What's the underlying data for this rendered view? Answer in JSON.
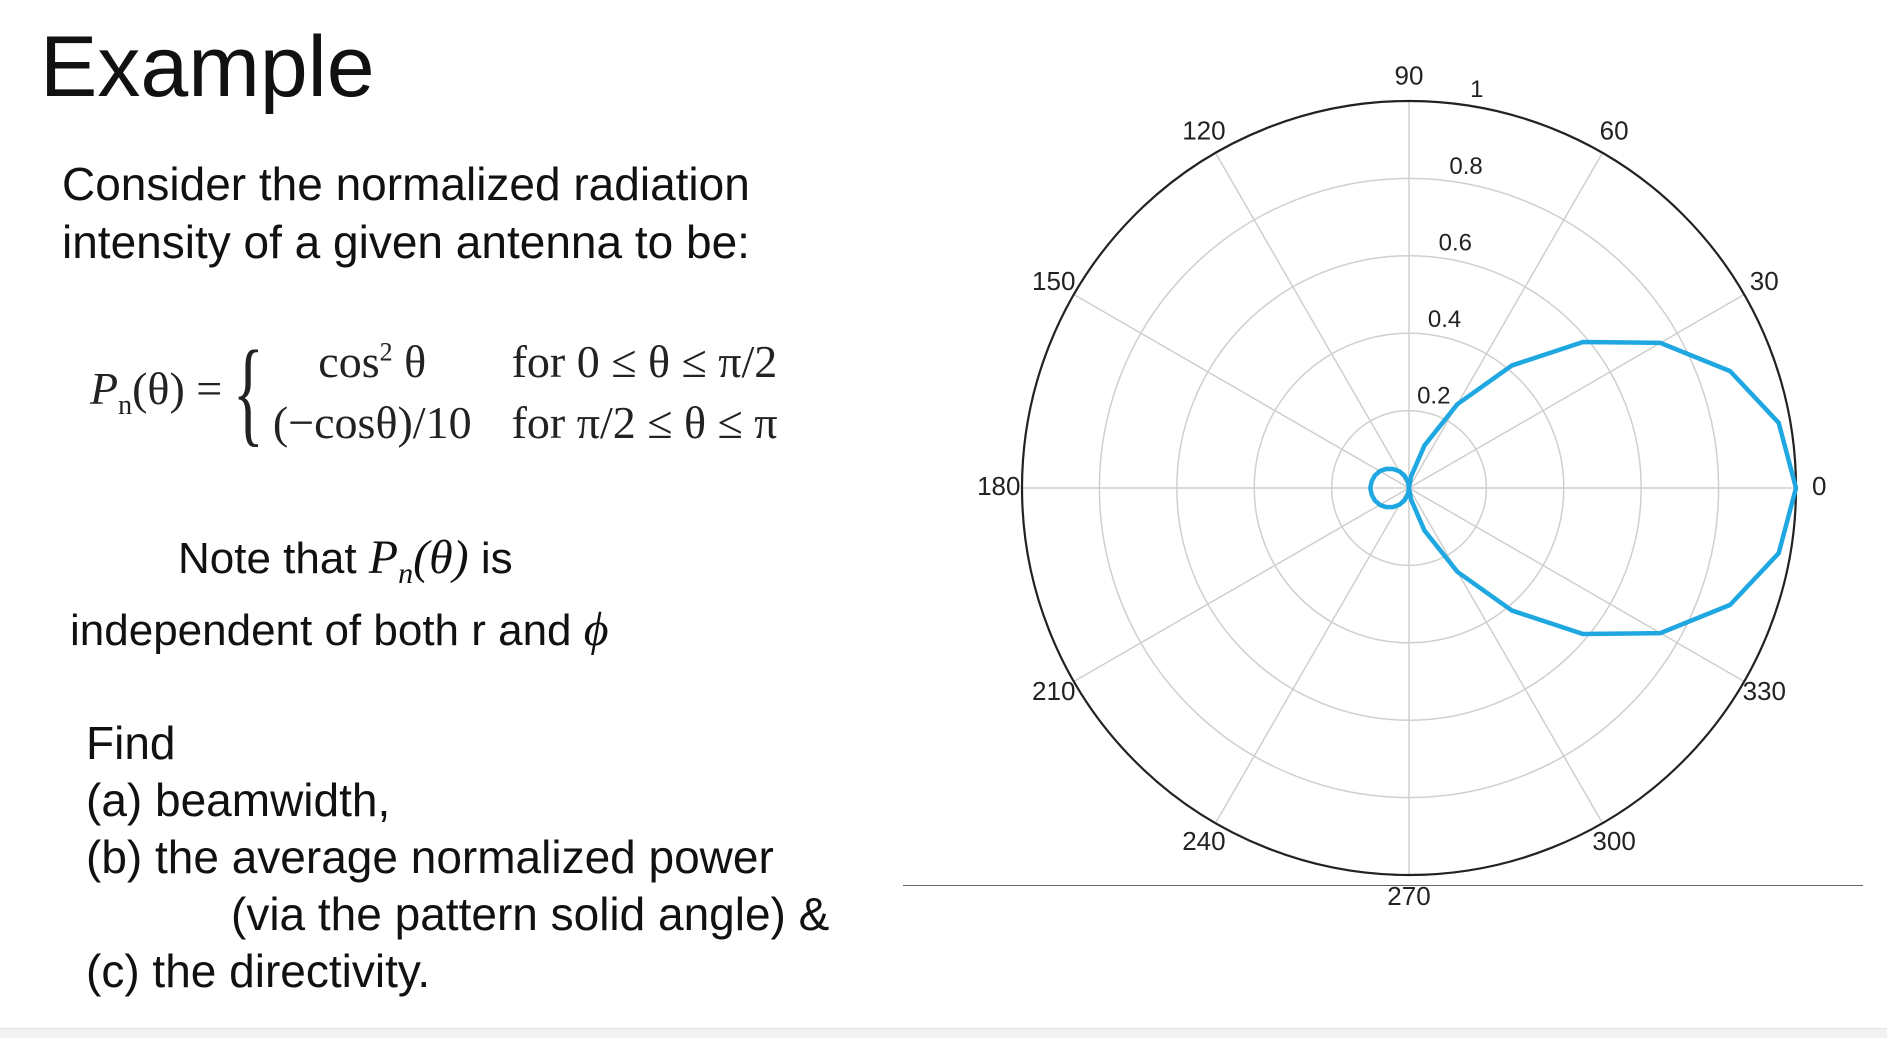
{
  "slide": {
    "title": "Example",
    "intro_line1": "Consider the normalized radiation",
    "intro_line2": "intensity of a given antenna to be:",
    "equation": {
      "lhs_P": "P",
      "lhs_sub": "n",
      "lhs_rest": "(θ) =",
      "case1_expr_base": "cos",
      "case1_expr_sup": "2",
      "case1_expr_var": " θ",
      "case1_cond": "for  0 ≤ θ ≤ π/2",
      "case2_expr": "(−cosθ)/10",
      "case2_cond": "for  π/2 ≤ θ ≤ π"
    },
    "note_line1_pre": "Note that ",
    "note_line1_math": "P",
    "note_line1_sub": "n",
    "note_line1_math2": "(θ)",
    "note_line1_post": " is",
    "note_line2_pre": "independent of both r and ",
    "note_line2_math": "ϕ",
    "find": {
      "heading": "Find",
      "a": "(a) beamwidth,",
      "b": "(b) the average normalized power",
      "b2": "(via the pattern solid angle) &",
      "c": "(c) the directivity."
    }
  },
  "chart_data": {
    "type": "polar-line",
    "angle_ticks_deg": [
      "0",
      "30",
      "60",
      "90",
      "120",
      "150",
      "180",
      "210",
      "240",
      "270",
      "300",
      "330"
    ],
    "radial_ticks": [
      "0.2",
      "0.4",
      "0.6",
      "0.8",
      "1"
    ],
    "rlim": [
      0,
      1
    ],
    "grid": true,
    "series": [
      {
        "color": "#1ea7e0",
        "theta_deg": [
          -90,
          -80,
          -70,
          -60,
          -50,
          -40,
          -30,
          -20,
          -10,
          0,
          10,
          20,
          30,
          40,
          50,
          60,
          70,
          80,
          90,
          100,
          110,
          120,
          130,
          140,
          150,
          160,
          170,
          180,
          190,
          200,
          210,
          220,
          230,
          240,
          250,
          260,
          270
        ],
        "r": [
          0.0,
          0.03,
          0.117,
          0.25,
          0.413,
          0.587,
          0.75,
          0.883,
          0.97,
          1.0,
          0.97,
          0.883,
          0.75,
          0.587,
          0.413,
          0.25,
          0.117,
          0.03,
          0.0,
          0.017,
          0.034,
          0.05,
          0.064,
          0.077,
          0.087,
          0.094,
          0.098,
          0.1,
          0.098,
          0.094,
          0.087,
          0.077,
          0.064,
          0.05,
          0.034,
          0.017,
          0.0
        ]
      }
    ]
  }
}
